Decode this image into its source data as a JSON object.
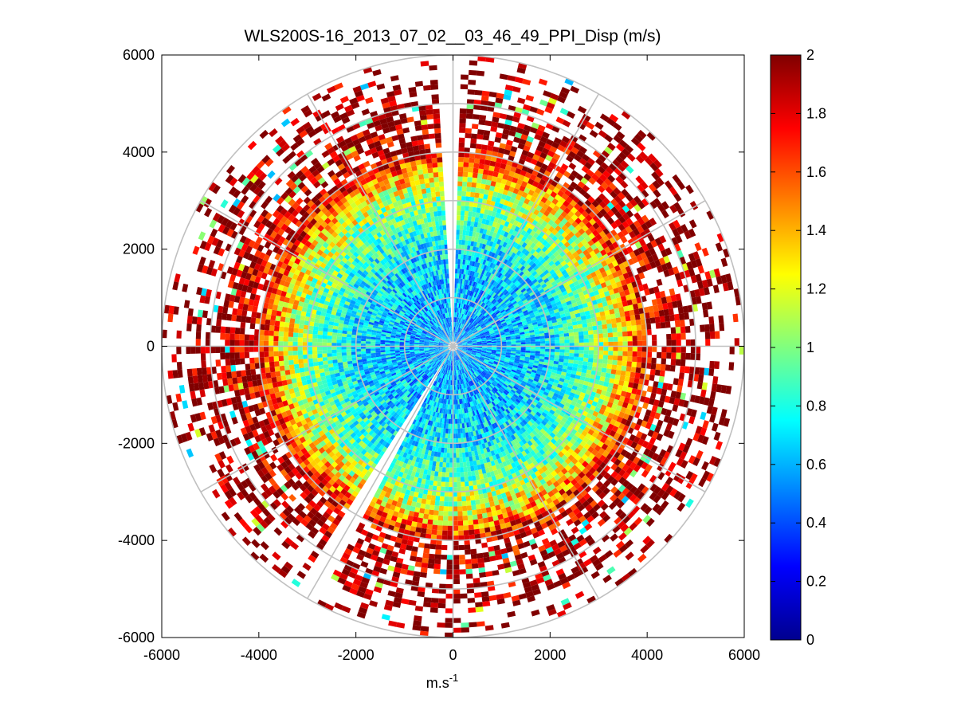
{
  "chart_data": {
    "type": "heatmap",
    "subtype": "polar-ppi",
    "title": "WLS200S-16_2013_07_02__03_46_49_PPI_Disp (m/s)",
    "xlabel": "m.s",
    "xlabel_superscript": "-1",
    "ylabel": "",
    "xlim": [
      -6000,
      6000
    ],
    "ylim": [
      -6000,
      6000
    ],
    "x_ticks": [
      -6000,
      -4000,
      -2000,
      0,
      2000,
      4000,
      6000
    ],
    "y_ticks": [
      6000,
      4000,
      2000,
      0,
      -2000,
      -4000,
      -6000
    ],
    "x_tick_labels": [
      "-6000",
      "-4000",
      "-2000",
      "0",
      "2000",
      "4000",
      "6000"
    ],
    "y_tick_labels": [
      "6000",
      "4000",
      "2000",
      "0",
      "-2000",
      "-4000",
      "-6000"
    ],
    "max_range": 6000,
    "range_rings": [
      1000,
      2000,
      3000,
      4000,
      5000,
      6000
    ],
    "spoke_angles_deg": [
      0,
      30,
      60,
      90,
      120,
      150,
      180,
      210,
      240,
      270,
      300,
      330
    ],
    "colorbar": {
      "colormap": "jet",
      "min": 0,
      "max": 2,
      "ticks": [
        2,
        1.8,
        1.6,
        1.4,
        1.2,
        1,
        0.8,
        0.6,
        0.4,
        0.2,
        0
      ],
      "tick_labels": [
        "2",
        "1.8",
        "1.6",
        "1.4",
        "1.2",
        "1",
        "0.8",
        "0.6",
        "0.4",
        "0.2",
        "0"
      ]
    },
    "field_profile": {
      "range_km": [
        0,
        1,
        2,
        3,
        3.5,
        4,
        5,
        6
      ],
      "mean_value_m_per_s": [
        0.55,
        0.6,
        0.7,
        1.0,
        1.3,
        1.8,
        2.0,
        2.0
      ]
    },
    "data_gaps": [
      {
        "from_azimuth_deg": 208,
        "to_azimuth_deg": 213,
        "description": "no-data wedge south-southwest"
      }
    ],
    "grid": true
  }
}
